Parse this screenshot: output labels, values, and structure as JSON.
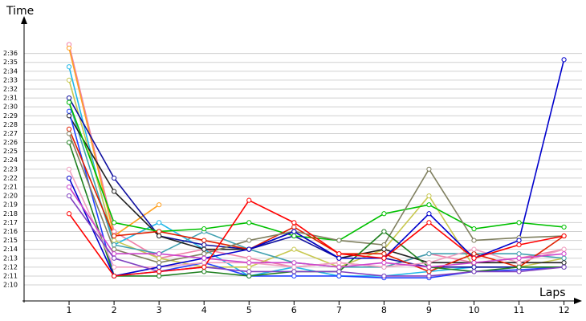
{
  "chart_data": {
    "type": "line",
    "ylabel": "Time",
    "xlabel": "Laps",
    "grid": true,
    "x": [
      1,
      2,
      3,
      4,
      5,
      6,
      7,
      8,
      9,
      10,
      11,
      12
    ],
    "xticks": [
      1,
      2,
      3,
      4,
      5,
      6,
      7,
      8,
      9,
      10,
      11,
      12
    ],
    "xlim": [
      0,
      12.4
    ],
    "ylim": [
      128.2,
      160.2
    ],
    "yticks": [
      {
        "value": 130,
        "label": "2:10"
      },
      {
        "value": 131,
        "label": "2:11"
      },
      {
        "value": 132,
        "label": "2:12"
      },
      {
        "value": 133,
        "label": "2:13"
      },
      {
        "value": 134,
        "label": "2:14"
      },
      {
        "value": 135,
        "label": "2:15"
      },
      {
        "value": 136,
        "label": "2:16"
      },
      {
        "value": 137,
        "label": "2:17"
      },
      {
        "value": 138,
        "label": "2:18"
      },
      {
        "value": 139,
        "label": "2:19"
      },
      {
        "value": 140,
        "label": "2:20"
      },
      {
        "value": 141,
        "label": "2:21"
      },
      {
        "value": 142,
        "label": "2:22"
      },
      {
        "value": 143,
        "label": "2:23"
      },
      {
        "value": 144,
        "label": "2:24"
      },
      {
        "value": 145,
        "label": "2:25"
      },
      {
        "value": 146,
        "label": "2:26"
      },
      {
        "value": 147,
        "label": "2:27"
      },
      {
        "value": 148,
        "label": "2:28"
      },
      {
        "value": 149,
        "label": "2:29"
      },
      {
        "value": 150,
        "label": "2:30"
      },
      {
        "value": 151,
        "label": "2:31"
      },
      {
        "value": 152,
        "label": "2:32"
      },
      {
        "value": 153,
        "label": "2:33"
      },
      {
        "value": 154,
        "label": "2:34"
      },
      {
        "value": 155,
        "label": "2:35"
      },
      {
        "value": 156,
        "label": "2:36"
      }
    ],
    "series": [
      {
        "color": "#f080a8",
        "values": [
          157,
          136,
          133,
          134,
          133,
          132,
          132.5,
          132,
          133.5,
          132.5,
          133,
          134
        ]
      },
      {
        "color": "#ffa020",
        "values": [
          156.6,
          135.5,
          139,
          null,
          null,
          null,
          null,
          null,
          null,
          null,
          null,
          null
        ]
      },
      {
        "color": "#20b8e8",
        "values": [
          154.5,
          134.5,
          137,
          134,
          131,
          132,
          131,
          131,
          131.5,
          132,
          132,
          132
        ]
      },
      {
        "color": "#c8c850",
        "values": [
          153,
          135,
          133,
          132,
          132,
          134,
          132,
          134,
          140,
          132,
          132,
          133
        ]
      },
      {
        "color": "#40a0b0",
        "values": [
          150.5,
          134.5,
          133.5,
          136,
          134,
          132.5,
          132,
          132,
          133.5,
          133.5,
          133.5,
          133
        ]
      },
      {
        "color": "#1010a0",
        "values": [
          151,
          142,
          135.5,
          134.5,
          134,
          135.5,
          133,
          133,
          132,
          132,
          132,
          132
        ]
      },
      {
        "color": "#202020",
        "values": [
          149,
          140.5,
          135.5,
          134,
          134,
          136,
          133,
          134,
          132.5,
          132.5,
          132.5,
          132.5
        ]
      },
      {
        "color": "#2040ff",
        "values": [
          149.5,
          131,
          131.5,
          132.5,
          131,
          131,
          131,
          130.8,
          130.8,
          131.5,
          131.7,
          132
        ]
      },
      {
        "color": "#00c000",
        "values": [
          150.5,
          137,
          136,
          136.3,
          137,
          135.5,
          135,
          138,
          139,
          136.3,
          137,
          136.5
        ]
      },
      {
        "color": "#e02000",
        "values": [
          147.5,
          135.5,
          136,
          135,
          134,
          136.5,
          133.5,
          133.5,
          131.5,
          133.5,
          132,
          135.5
        ]
      },
      {
        "color": "#808060",
        "values": [
          147,
          134,
          132.5,
          133.5,
          135,
          136,
          135,
          134.5,
          143,
          135,
          135.3,
          135.5
        ]
      },
      {
        "color": "#208020",
        "values": [
          146,
          131,
          131,
          131.5,
          131,
          131.5,
          131.5,
          136,
          132,
          131.5,
          132,
          132
        ]
      },
      {
        "color": "#f0a0c0",
        "values": [
          143,
          132,
          132,
          132.5,
          132.5,
          132,
          132.5,
          132,
          132.5,
          134,
          132.5,
          134
        ]
      },
      {
        "color": "#0000cc",
        "values": [
          142,
          131,
          132,
          133,
          134,
          136,
          133,
          133,
          138,
          133,
          135,
          155.3
        ]
      },
      {
        "color": "#cc44cc",
        "values": [
          141,
          133.5,
          133.5,
          133,
          132.5,
          132.5,
          132,
          132.5,
          132,
          132.5,
          133,
          133.5
        ]
      },
      {
        "color": "#8040c0",
        "values": [
          140,
          133,
          131.5,
          132,
          131.5,
          131.5,
          131.5,
          131,
          131,
          131.5,
          131.5,
          132
        ]
      },
      {
        "color": "#ff0000",
        "values": [
          138,
          131,
          131.5,
          132,
          139.5,
          137,
          133.5,
          133,
          137,
          133,
          134.5,
          135.5
        ]
      }
    ]
  }
}
